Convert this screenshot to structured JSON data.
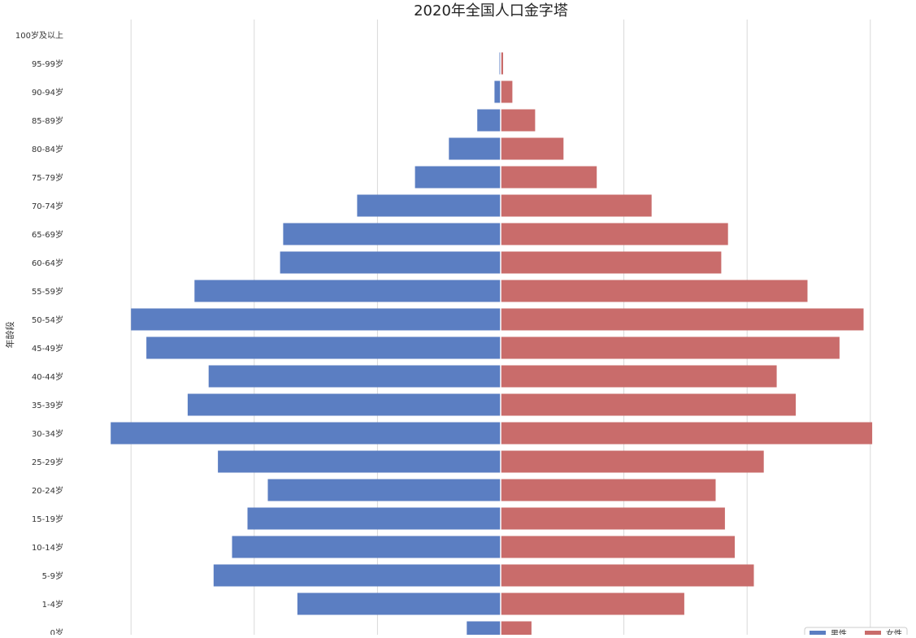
{
  "chart_data": {
    "type": "bar",
    "orientation": "horizontal-butterfly",
    "title": "2020年全国人口金字塔",
    "ylabel": "年龄段",
    "xlabel": "",
    "x_grid": true,
    "legend_position": "bottom-right",
    "categories": [
      "100岁及以上",
      "95-99岁",
      "90-94岁",
      "85-89岁",
      "80-84岁",
      "75-79岁",
      "70-74岁",
      "65-69岁",
      "60-64岁",
      "55-59岁",
      "50-54岁",
      "45-49岁",
      "40-44岁",
      "35-39岁",
      "30-34岁",
      "25-29岁",
      "20-24岁",
      "15-19岁",
      "10-14岁",
      "5-9岁",
      "1-4岁",
      "0岁"
    ],
    "xlim": [
      -0.06,
      0.06
    ],
    "series": [
      {
        "name": "男性",
        "side": "left",
        "color": "#5b7ec2",
        "values": [
          0.0,
          0.0002,
          0.001,
          0.0038,
          0.0084,
          0.0139,
          0.0233,
          0.0353,
          0.0358,
          0.0497,
          0.06,
          0.0575,
          0.0474,
          0.0508,
          0.0633,
          0.0459,
          0.0378,
          0.0411,
          0.0436,
          0.0466,
          0.033,
          0.0055
        ]
      },
      {
        "name": "女性",
        "side": "right",
        "color": "#c96c6b",
        "values": [
          0.0,
          0.0004,
          0.0019,
          0.0056,
          0.0102,
          0.0156,
          0.0245,
          0.0369,
          0.0358,
          0.0498,
          0.0589,
          0.055,
          0.0448,
          0.0479,
          0.0603,
          0.0427,
          0.0349,
          0.0364,
          0.038,
          0.0411,
          0.0298,
          0.005
        ]
      }
    ]
  }
}
